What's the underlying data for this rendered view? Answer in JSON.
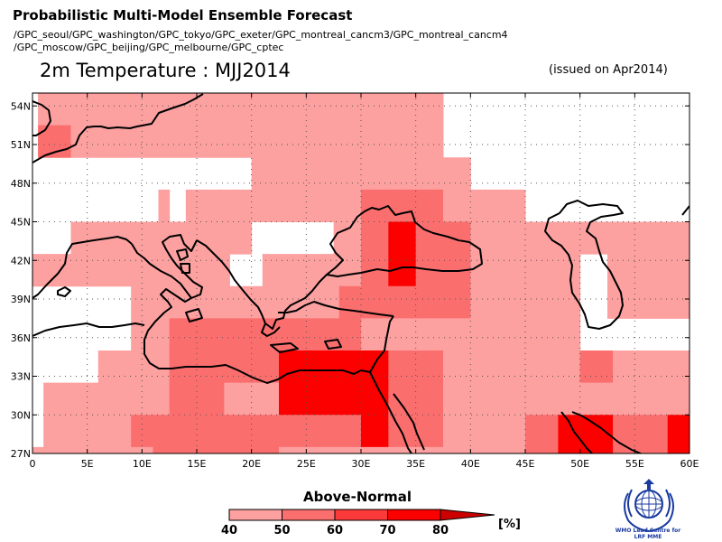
{
  "header": {
    "title": "Probabilistic Multi-Model Ensemble Forecast",
    "models_line1": "/GPC_seoul/GPC_washington/GPC_tokyo/GPC_exeter/GPC_montreal_cancm3/GPC_montreal_cancm4",
    "models_line2": "/GPC_moscow/GPC_beijing/GPC_melbourne/GPC_cptec",
    "variable": "2m Temperature : MJJ2014",
    "issued": "(issued on Apr2014)"
  },
  "map": {
    "lon_range": [
      0,
      60
    ],
    "lat_range": [
      27,
      55
    ],
    "lat_ticks": [
      "54N",
      "51N",
      "48N",
      "45N",
      "42N",
      "39N",
      "36N",
      "33N",
      "30N",
      "27N"
    ],
    "lon_ticks": [
      "0",
      "5E",
      "10E",
      "15E",
      "20E",
      "25E",
      "30E",
      "35E",
      "40E",
      "45E",
      "50E",
      "55E",
      "60E"
    ],
    "grid": "dotted",
    "grid_step_deg": 5,
    "coastline_color": "#000000"
  },
  "legend": {
    "title": "Above-Normal",
    "labels": [
      "40",
      "50",
      "60",
      "70",
      "80"
    ],
    "unit": "[%]",
    "colors": [
      "#fca0a0",
      "#fb6e6e",
      "#fc3a3a",
      "#fc0000",
      "#cc0000"
    ]
  },
  "logo": {
    "name": "wmo-emblem",
    "text_line1": "WMO Lead Centre for",
    "text_line2": "LRF MME"
  },
  "chart_data": {
    "type": "heatmap",
    "title": "2m Temperature : MJJ2014",
    "x_range": [
      0,
      60
    ],
    "y_range": [
      27,
      55
    ],
    "cell_size_deg": 2.5,
    "categories": [
      "40-50",
      "50-60",
      "60-70",
      "70-80"
    ],
    "rows": [
      {
        "lat": [
          52.5,
          55
        ],
        "cells": [
          [
            0.5,
            37.5,
            1
          ]
        ]
      },
      {
        "lat": [
          50,
          52.5
        ],
        "cells": [
          [
            0.5,
            3.5,
            2
          ],
          [
            3.5,
            15,
            1
          ],
          [
            15,
            26,
            1
          ],
          [
            26,
            32,
            1
          ],
          [
            32,
            37.5,
            1
          ]
        ]
      },
      {
        "lat": [
          47.5,
          50
        ],
        "cells": [
          [
            20,
            40,
            1
          ]
        ]
      },
      {
        "lat": [
          45,
          47.5
        ],
        "cells": [
          [
            11.5,
            12.5,
            1
          ],
          [
            14,
            30,
            1
          ],
          [
            30,
            37.5,
            2
          ],
          [
            37.5,
            41,
            1
          ],
          [
            41,
            45,
            1
          ]
        ]
      },
      {
        "lat": [
          42.5,
          45
        ],
        "cells": [
          [
            3.5,
            8,
            1
          ],
          [
            8,
            14,
            1
          ],
          [
            14,
            20,
            1
          ],
          [
            27.5,
            30,
            1
          ],
          [
            30,
            32.5,
            2
          ],
          [
            32.5,
            35,
            4
          ],
          [
            35,
            40,
            2
          ],
          [
            40,
            45,
            1
          ],
          [
            45,
            60,
            1
          ]
        ]
      },
      {
        "lat": [
          40,
          42.5
        ],
        "cells": [
          [
            0,
            8,
            1
          ],
          [
            8,
            18,
            1
          ],
          [
            21,
            30,
            1
          ],
          [
            30,
            32.5,
            2
          ],
          [
            32.5,
            35,
            4
          ],
          [
            35,
            40,
            2
          ],
          [
            40,
            50,
            1
          ],
          [
            52.5,
            60,
            1
          ]
        ]
      },
      {
        "lat": [
          37.5,
          40
        ],
        "cells": [
          [
            9,
            15,
            1
          ],
          [
            15,
            28,
            1
          ],
          [
            28,
            40,
            2
          ],
          [
            40,
            50,
            1
          ],
          [
            52.5,
            60,
            1
          ]
        ]
      },
      {
        "lat": [
          35,
          37.5
        ],
        "cells": [
          [
            9,
            12.5,
            1
          ],
          [
            12.5,
            20,
            2
          ],
          [
            20,
            25,
            2
          ],
          [
            25,
            30,
            2
          ],
          [
            30,
            37.5,
            1
          ],
          [
            37.5,
            50,
            1
          ]
        ]
      },
      {
        "lat": [
          32.5,
          35
        ],
        "cells": [
          [
            6,
            12.5,
            1
          ],
          [
            12.5,
            17.5,
            2
          ],
          [
            17.5,
            22.5,
            2
          ],
          [
            22.5,
            32.5,
            4
          ],
          [
            32.5,
            37.5,
            2
          ],
          [
            37.5,
            50,
            1
          ],
          [
            50,
            53,
            2
          ],
          [
            53,
            60,
            1
          ]
        ]
      },
      {
        "lat": [
          30,
          32.5
        ],
        "cells": [
          [
            1,
            9,
            1
          ],
          [
            9,
            12.5,
            1
          ],
          [
            12.5,
            17.5,
            2
          ],
          [
            17.5,
            22.5,
            1
          ],
          [
            22.5,
            32.5,
            4
          ],
          [
            32.5,
            37.5,
            2
          ],
          [
            37.5,
            45,
            1
          ],
          [
            45,
            50,
            1
          ],
          [
            50,
            55,
            1
          ],
          [
            55,
            60,
            1
          ]
        ]
      },
      {
        "lat": [
          27.5,
          30
        ],
        "cells": [
          [
            1,
            9,
            1
          ],
          [
            9,
            22.5,
            2
          ],
          [
            22.5,
            30,
            2
          ],
          [
            30,
            32.5,
            4
          ],
          [
            32.5,
            37.5,
            2
          ],
          [
            37.5,
            45,
            1
          ],
          [
            45,
            48,
            2
          ],
          [
            48,
            53,
            4
          ],
          [
            53,
            58,
            2
          ],
          [
            58,
            60,
            4
          ]
        ]
      },
      {
        "lat": [
          27,
          27.5
        ],
        "cells": [
          [
            0,
            11,
            1
          ],
          [
            11,
            22.5,
            2
          ],
          [
            22.5,
            35,
            1
          ],
          [
            35,
            45,
            1
          ],
          [
            45,
            48,
            2
          ],
          [
            48,
            53,
            4
          ],
          [
            53,
            58,
            2
          ],
          [
            58,
            60,
            4
          ]
        ]
      }
    ]
  }
}
